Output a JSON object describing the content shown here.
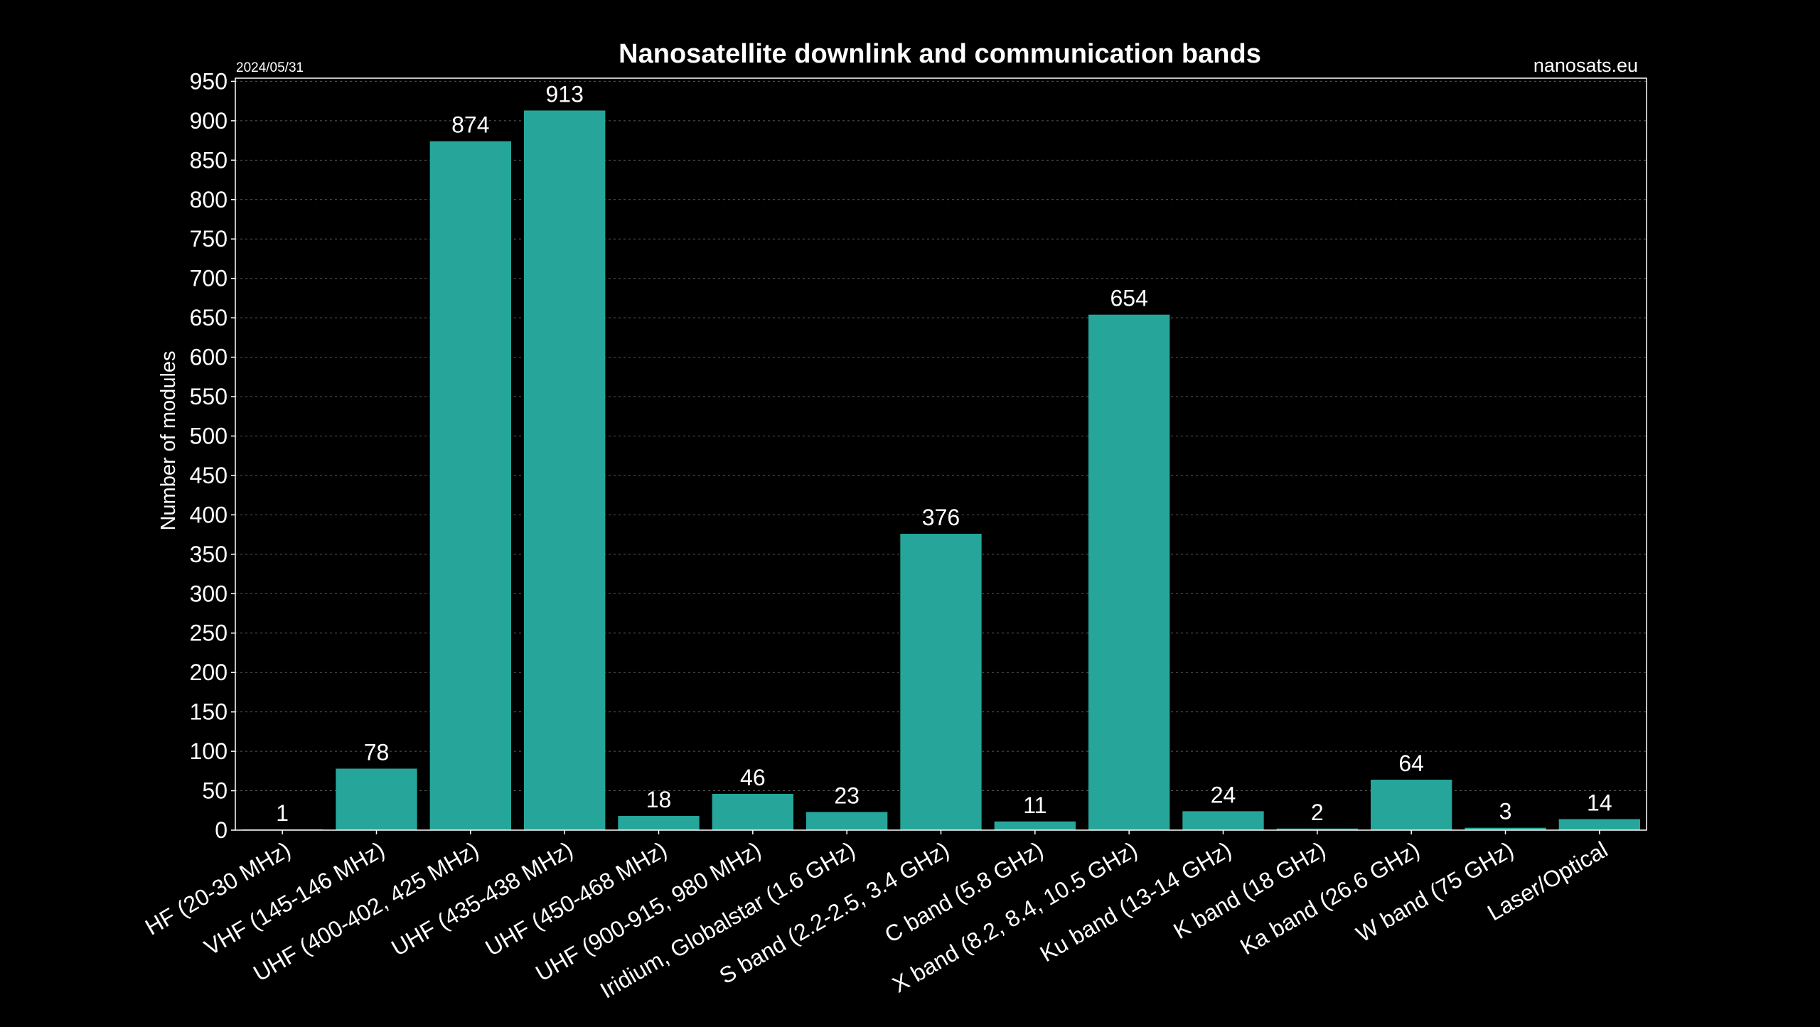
{
  "date": "2024/05/31",
  "source": "nanosats.eu",
  "chart_data": {
    "type": "bar",
    "title": "Nanosatellite downlink and communication bands",
    "xlabel": "",
    "ylabel": "Number of modules",
    "ylim": [
      0,
      950
    ],
    "yticks": [
      0,
      50,
      100,
      150,
      200,
      250,
      300,
      350,
      400,
      450,
      500,
      550,
      600,
      650,
      700,
      750,
      800,
      850,
      900,
      950
    ],
    "grid": true,
    "categories": [
      "HF (20-30 MHz)",
      "VHF (145-146 MHz)",
      "UHF (400-402, 425 MHz)",
      "UHF (435-438 MHz)",
      "UHF (450-468 MHz)",
      "UHF (900-915, 980 MHz)",
      "Iridium, Globalstar (1.6 GHz)",
      "S band (2.2-2.5, 3.4 GHz)",
      "C band (5.8 GHz)",
      "X band (8.2, 8.4, 10.5 GHz)",
      "Ku band (13-14 GHz)",
      "K band (18 GHz)",
      "Ka band (26.6 GHz)",
      "W band (75 GHz)",
      "Laser/Optical"
    ],
    "values": [
      1,
      78,
      874,
      913,
      18,
      46,
      23,
      376,
      11,
      654,
      24,
      2,
      64,
      3,
      14
    ],
    "bar_color": "#26a69a",
    "background_color": "#000000",
    "text_color": "#ffffff"
  }
}
